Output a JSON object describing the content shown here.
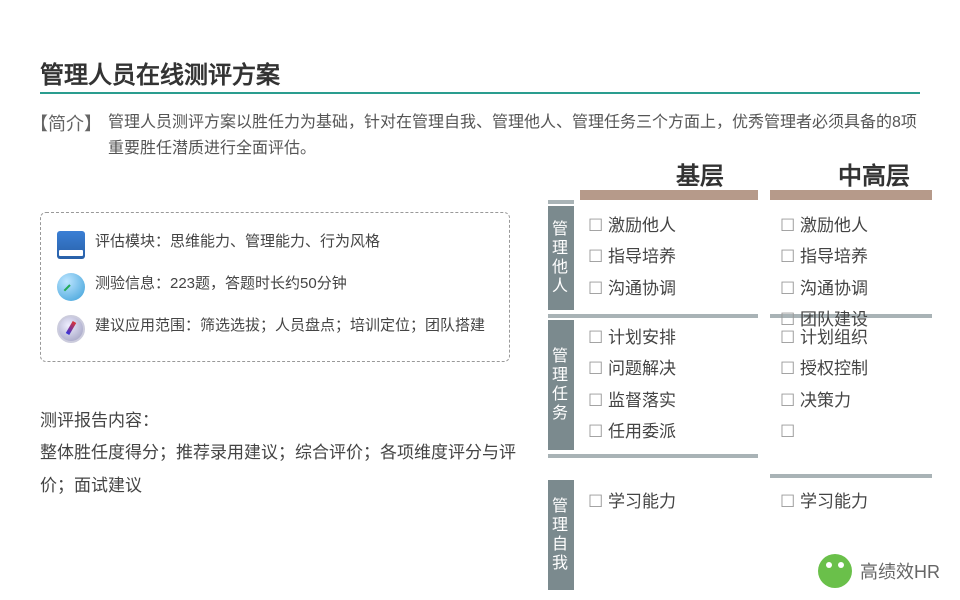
{
  "title": "管理人员在线测评方案",
  "intro_label": "【简介】",
  "intro_text": "管理人员测评方案以胜任力为基础，针对在管理自我、管理他人、管理任务三个方面上，优秀管理者必须具备的8项重要胜任潜质进行全面评估。",
  "info": {
    "modules": "评估模块：思维能力、管理能力、行为风格",
    "test": "测验信息：223题，答题时长约50分钟",
    "scope": "建议应用范围：筛选选拔；人员盘点；培训定位；团队搭建"
  },
  "report": {
    "heading": "测评报告内容：",
    "body": "整体胜任度得分；推荐录用建议；综合评价；各项维度评分与评价；面试建议"
  },
  "matrix": {
    "col_headers": {
      "basic": "基层",
      "senior": "中高层"
    },
    "row_labels": {
      "r1": "管理他人",
      "r2": "管理任务",
      "r3": "管理自我"
    },
    "cells": {
      "r1_basic": [
        "激励他人",
        "指导培养",
        "沟通协调"
      ],
      "r1_senior": [
        "激励他人",
        "指导培养",
        "沟通协调",
        "团队建设"
      ],
      "r2_basic": [
        "计划安排",
        "问题解决",
        "监督落实",
        "任用委派"
      ],
      "r2_senior": [
        "计划组织",
        "授权控制",
        "决策力",
        ""
      ],
      "r3_basic": [
        "学习能力"
      ],
      "r3_senior": [
        "学习能力"
      ]
    }
  },
  "styling": {
    "accent_color": "#2a9d8f",
    "row_label_bg": "#7b8a8e",
    "header_bar_color": "#b69a8a",
    "separator_color": "#a9b3b6",
    "text_color": "#444",
    "title_fontsize": 24,
    "body_fontsize": 16,
    "matrix_fontsize": 17
  },
  "watermark": "高绩效HR"
}
